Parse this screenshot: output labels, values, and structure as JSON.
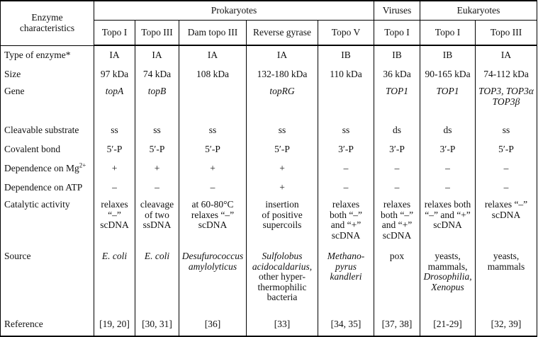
{
  "colors": {
    "border": "#000000",
    "text": "#111111",
    "background": "#ffffff"
  },
  "header": {
    "corner": "Enzyme\ncharacteristics",
    "groups": [
      {
        "label": "Prokaryotes",
        "span": 5
      },
      {
        "label": "Viruses",
        "span": 1
      },
      {
        "label": "Eukaryotes",
        "span": 2
      }
    ],
    "subcolumns": [
      "Topo I",
      "Topo III",
      "Dam topo III",
      "Reverse gyrase",
      "Topo V",
      "Topo I",
      "Topo I",
      "Topo III"
    ]
  },
  "rows": [
    {
      "label": "Type of enzyme*",
      "values": [
        "IA",
        "IA",
        "IA",
        "IA",
        "IB",
        "IB",
        "IB",
        "IA"
      ]
    },
    {
      "label": "Size",
      "values": [
        "97 kDa",
        "74 kDa",
        "108 kDa",
        "132-180 kDa",
        "110 kDa",
        "36 kDa",
        "90-165 kDa",
        "74-112 kDa"
      ]
    },
    {
      "label": "Gene",
      "values": [
        "topA",
        "topB",
        "",
        "topRG",
        "",
        "TOP1",
        "TOP1",
        "TOP3, TOP3α\nTOP3β"
      ]
    },
    {
      "label": "Cleavable substrate",
      "values": [
        "ss",
        "ss",
        "ss",
        "ss",
        "ss",
        "ds",
        "ds",
        "ss"
      ]
    },
    {
      "label": "Covalent bond",
      "values": [
        "5′-P",
        "5′-P",
        "5′-P",
        "5′-P",
        "3′-P",
        "3′-P",
        "3′-P",
        "5′-P"
      ]
    },
    {
      "label": "Dependence on Mg",
      "label_sup": "2+",
      "values": [
        "+",
        "+",
        "+",
        "+",
        "–",
        "–",
        "–",
        "–"
      ]
    },
    {
      "label": "Dependence on ATP",
      "values": [
        "–",
        "–",
        "–",
        "+",
        "–",
        "–",
        "–",
        "–"
      ]
    },
    {
      "label": "Catalytic activity",
      "values": [
        "relaxes\n“–”\nscDNA",
        "cleavage\nof two\nssDNA",
        "at 60-80°C\nrelaxes “–”\nscDNA",
        "insertion\nof positive\nsupercoils",
        "relaxes\nboth “–”\nand “+”\nscDNA",
        "relaxes\nboth “–”\nand “+”\nscDNA",
        "relaxes both\n“–” and “+”\nscDNA",
        "relaxes “–”\nscDNA"
      ]
    },
    {
      "label": "Source",
      "segments": [
        [
          {
            "text": "E. coli",
            "italic": true
          }
        ],
        [
          {
            "text": "E. coli",
            "italic": true
          }
        ],
        [
          {
            "text": "Desufurococcus\namylolyticus",
            "italic": true
          }
        ],
        [
          {
            "text": "Sulfolobus\nacidocaldarius,",
            "italic": true
          },
          {
            "text": "\nother hyper-\nthermophilic\nbacteria",
            "italic": false
          }
        ],
        [
          {
            "text": "Methano-\npyrus\nkandleri",
            "italic": true
          }
        ],
        [
          {
            "text": "pox",
            "italic": false
          }
        ],
        [
          {
            "text": "yeasts,\nmammals,\n",
            "italic": false
          },
          {
            "text": "Drosophilia,\nXenopus",
            "italic": true
          }
        ],
        [
          {
            "text": "yeasts,\nmammals",
            "italic": false
          }
        ]
      ]
    },
    {
      "label": "Reference",
      "values": [
        "[19, 20]",
        "[30, 31]",
        "[36]",
        "[33]",
        "[34, 35]",
        "[37, 38]",
        "[21-29]",
        "[32, 39]"
      ]
    }
  ]
}
